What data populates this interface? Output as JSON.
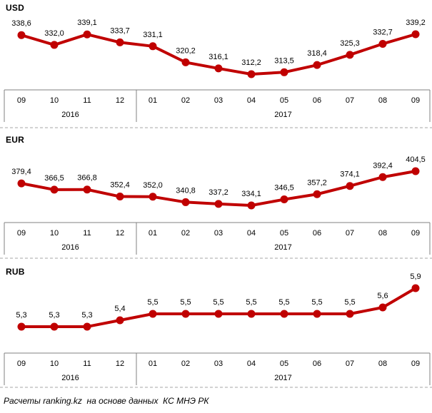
{
  "page": {
    "footer_source": "Расчеты ranking.kz  на основе данных  КС МНЭ РК"
  },
  "colors": {
    "series": "#c00000",
    "axis_border": "#808080",
    "separator": "#a6a6a6",
    "text": "#000000"
  },
  "chart_data": [
    {
      "type": "line",
      "title": "USD",
      "x": [
        "09",
        "10",
        "11",
        "12",
        "01",
        "02",
        "03",
        "04",
        "05",
        "06",
        "07",
        "08",
        "09"
      ],
      "year_groups": [
        {
          "label": "2016",
          "from": 0,
          "to": 3
        },
        {
          "label": "2017",
          "from": 4,
          "to": 12
        }
      ],
      "values": [
        338.6,
        332.0,
        339.1,
        333.7,
        331.1,
        320.2,
        316.1,
        312.2,
        313.5,
        318.4,
        325.3,
        332.7,
        339.2
      ],
      "point_labels": [
        "338,6",
        "332,0",
        "339,1",
        "333,7",
        "331,1",
        "320,2",
        "316,1",
        "312,2",
        "313,5",
        "318,4",
        "325,3",
        "332,7",
        "339,2"
      ],
      "ylim": [
        312.2,
        339.2
      ],
      "grid": false,
      "legend": "none"
    },
    {
      "type": "line",
      "title": "EUR",
      "x": [
        "09",
        "10",
        "11",
        "12",
        "01",
        "02",
        "03",
        "04",
        "05",
        "06",
        "07",
        "08",
        "09"
      ],
      "year_groups": [
        {
          "label": "2016",
          "from": 0,
          "to": 3
        },
        {
          "label": "2017",
          "from": 4,
          "to": 12
        }
      ],
      "values": [
        379.4,
        366.5,
        366.8,
        352.4,
        352.0,
        340.8,
        337.2,
        334.1,
        346.5,
        357.2,
        374.1,
        392.4,
        404.5
      ],
      "point_labels": [
        "379,4",
        "366,5",
        "366,8",
        "352,4",
        "352,0",
        "340,8",
        "337,2",
        "334,1",
        "346,5",
        "357,2",
        "374,1",
        "392,4",
        "404,5"
      ],
      "ylim": [
        334.1,
        404.5
      ],
      "grid": false,
      "legend": "none"
    },
    {
      "type": "line",
      "title": "RUB",
      "x": [
        "09",
        "10",
        "11",
        "12",
        "01",
        "02",
        "03",
        "04",
        "05",
        "06",
        "07",
        "08",
        "09"
      ],
      "year_groups": [
        {
          "label": "2016",
          "from": 0,
          "to": 3
        },
        {
          "label": "2017",
          "from": 4,
          "to": 12
        }
      ],
      "values": [
        5.3,
        5.3,
        5.3,
        5.4,
        5.5,
        5.5,
        5.5,
        5.5,
        5.5,
        5.5,
        5.5,
        5.6,
        5.9
      ],
      "point_labels": [
        "5,3",
        "5,3",
        "5,3",
        "5,4",
        "5,5",
        "5,5",
        "5,5",
        "5,5",
        "5,5",
        "5,5",
        "5,5",
        "5,6",
        "5,9"
      ],
      "ylim": [
        5.3,
        5.9
      ],
      "grid": false,
      "legend": "none"
    }
  ]
}
